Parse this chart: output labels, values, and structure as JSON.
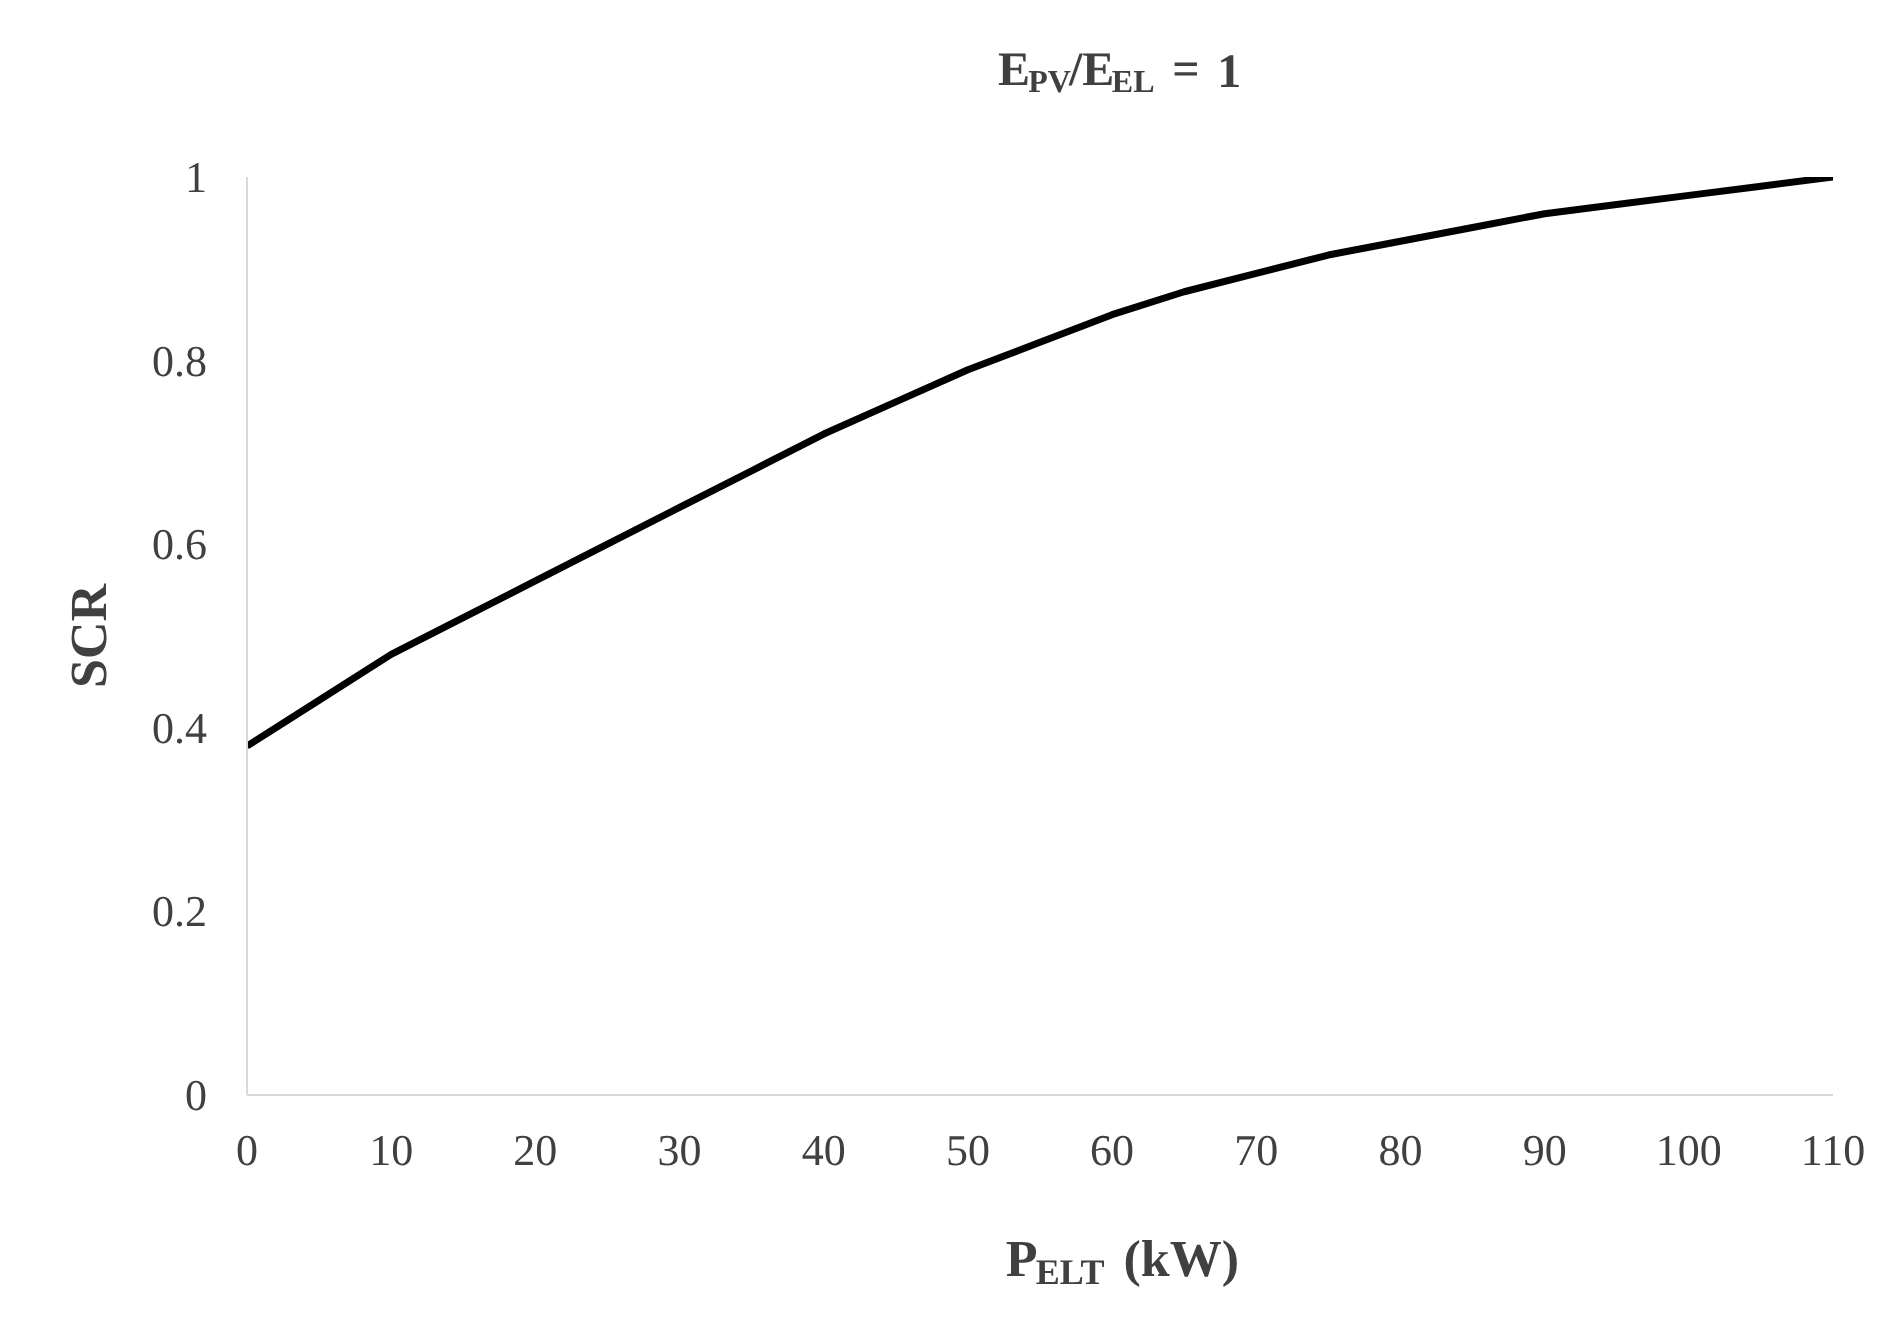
{
  "chart_data": {
    "type": "line",
    "title": "E$_{PV}$/E$_{EL}$ = 1",
    "xlabel": "P$_{ELT}$ (kW)",
    "ylabel": "SCR",
    "x": [
      0,
      5,
      10,
      15,
      20,
      25,
      30,
      35,
      40,
      45,
      50,
      55,
      60,
      65,
      70,
      75,
      80,
      85,
      90,
      95,
      100,
      105,
      110
    ],
    "series": [
      {
        "color": "#000000",
        "values": [
          0.38,
          0.43,
          0.48,
          0.52,
          0.56,
          0.6,
          0.64,
          0.68,
          0.72,
          0.755,
          0.79,
          0.82,
          0.85,
          0.875,
          0.895,
          0.915,
          0.93,
          0.945,
          0.96,
          0.97,
          0.98,
          0.99,
          1.0
        ]
      }
    ],
    "xlim": [
      0,
      110
    ],
    "ylim": [
      0,
      1
    ],
    "xticks": [
      0,
      10,
      20,
      30,
      40,
      50,
      60,
      70,
      80,
      90,
      100,
      110
    ],
    "yticks": [
      0,
      0.2,
      0.4,
      0.6,
      0.8,
      1
    ],
    "grid": false,
    "marker": "none",
    "line_style": "solid"
  }
}
